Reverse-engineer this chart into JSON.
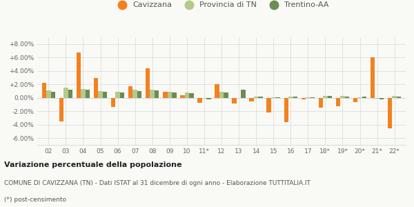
{
  "categories": [
    "02",
    "03",
    "04",
    "05",
    "06",
    "07",
    "08",
    "09",
    "10",
    "11*",
    "12",
    "13",
    "14",
    "15",
    "16",
    "17",
    "18*",
    "19*",
    "20*",
    "21*",
    "22*"
  ],
  "cavizzana": [
    2.2,
    -3.5,
    6.7,
    2.9,
    -1.4,
    1.7,
    4.4,
    0.9,
    0.35,
    -0.7,
    2.0,
    -0.8,
    -0.5,
    -2.2,
    -3.6,
    -0.2,
    -1.5,
    -1.3,
    -0.6,
    6.0,
    -4.5
  ],
  "provincia": [
    1.1,
    1.5,
    1.3,
    1.0,
    0.9,
    1.2,
    1.2,
    0.9,
    0.8,
    -0.1,
    0.9,
    0.0,
    0.2,
    0.1,
    0.2,
    0.1,
    0.3,
    0.3,
    0.1,
    -0.1,
    0.3
  ],
  "trentino": [
    0.9,
    1.2,
    1.2,
    0.9,
    0.8,
    1.0,
    1.1,
    0.8,
    0.7,
    -0.2,
    0.8,
    1.2,
    0.2,
    0.1,
    0.2,
    0.1,
    0.3,
    0.2,
    0.2,
    -0.2,
    0.2
  ],
  "color_cavizzana": "#f4801e",
  "color_provincia": "#b5c98a",
  "color_trentino": "#6b8c52",
  "ylim_min": -7.0,
  "ylim_max": 9.0,
  "yticks": [
    -6.0,
    -4.0,
    -2.0,
    0.0,
    2.0,
    4.0,
    6.0,
    8.0
  ],
  "ytick_labels": [
    "-6.00%",
    "-4.00%",
    "-2.00%",
    "0.00%",
    "+2.00%",
    "+4.00%",
    "+6.00%",
    "+8.00%"
  ],
  "legend_labels": [
    "Cavizzana",
    "Provincia di TN",
    "Trentino-AA"
  ],
  "title_bold": "Variazione percentuale della popolazione",
  "subtitle": "COMUNE DI CAVIZZANA (TN) - Dati ISTAT al 31 dicembre di ogni anno - Elaborazione TUTTITALIA.IT",
  "footnote": "(*) post-censimento",
  "bg_color": "#f9f9f6",
  "grid_color": "#dddddd"
}
